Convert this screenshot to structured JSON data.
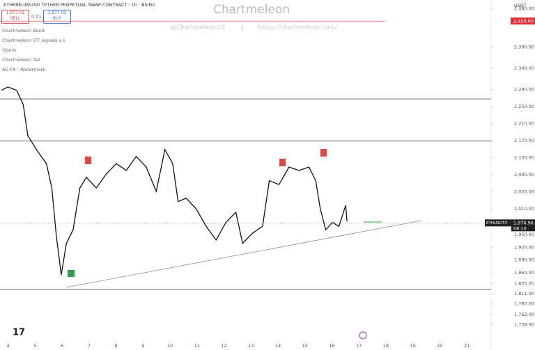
{
  "header": {
    "symbol": "ETHEREUM/USD TETHER PERPETUAL SWAP CONTRACT · 1h · BloFin",
    "sell_price": "1,977.01",
    "sell_label": "SELL",
    "spread": "0.01",
    "buy_price": "1,977.02",
    "buy_label": "BUY"
  },
  "indicators": [
    "Chartmeleon Band",
    "Chartmeleon LTF signals v.1",
    "Opens",
    "Chartmeleon Tall",
    "AG FX - Watermark"
  ],
  "watermark": {
    "title": "Chartmeleon",
    "handle": "@Chartmeleon1B",
    "separator": "|",
    "url": "https://chartmeleon.com/"
  },
  "currency": "USDT",
  "chart": {
    "type": "line",
    "x": [
      3.75,
      3.99,
      4.32,
      4.56,
      4.73,
      5.05,
      5.42,
      5.62,
      5.79,
      5.97,
      6.16,
      6.41,
      6.66,
      6.9,
      7.27,
      7.64,
      8.01,
      8.38,
      8.75,
      9.12,
      9.49,
      9.81,
      10.1,
      10.3,
      10.6,
      10.97,
      11.34,
      11.71,
      12.07,
      12.44,
      12.69,
      13.06,
      13.43,
      13.68,
      14.04,
      14.41,
      14.78,
      15.15,
      15.4,
      15.57,
      15.77,
      16.02,
      16.26,
      16.51,
      16.56
    ],
    "values": [
      2288,
      2296,
      2288,
      2255,
      2182,
      2149,
      2116,
      2059,
      1945,
      1855,
      1929,
      1961,
      2059,
      2084,
      2059,
      2092,
      2116,
      2100,
      2133,
      2108,
      2051,
      2149,
      2116,
      2027,
      2035,
      2010,
      1969,
      1937,
      1978,
      2002,
      1929,
      1953,
      1969,
      2076,
      2067,
      2108,
      2100,
      2108,
      2076,
      2010,
      1961,
      1978,
      1969,
      2018,
      1981
    ],
    "color": "#111111",
    "xlim": [
      3.7,
      21.9
    ],
    "xticks": [
      4,
      5,
      6,
      7,
      8,
      9,
      10,
      11,
      12,
      13,
      14,
      15,
      16,
      17,
      18,
      19,
      20,
      21
    ],
    "ylim": [
      1700,
      2500
    ],
    "yticks": [
      {
        "value": 2480,
        "label": "2,480.00"
      },
      {
        "value": 2390,
        "label": "2,390.00"
      },
      {
        "value": 2340,
        "label": "2,340.00"
      },
      {
        "value": 2290,
        "label": "2,290.00"
      },
      {
        "value": 2250,
        "label": "2,250.00"
      },
      {
        "value": 2210,
        "label": "2,210.00"
      },
      {
        "value": 2170,
        "label": "2,170.00"
      },
      {
        "value": 2130,
        "label": "2,130.00"
      },
      {
        "value": 2090,
        "label": "2,090.00"
      },
      {
        "value": 2050,
        "label": "2,050.00"
      },
      {
        "value": 2010,
        "label": "2,010.00"
      },
      {
        "value": 1950,
        "label": "1,950.00"
      },
      {
        "value": 1920,
        "label": "1,920.00"
      },
      {
        "value": 1890,
        "label": "1,890.00"
      },
      {
        "value": 1860,
        "label": "1,860.00"
      },
      {
        "value": 1835,
        "label": "1,835.00"
      },
      {
        "value": 1811,
        "label": "1,811.00"
      },
      {
        "value": 1787,
        "label": "1,787.00"
      },
      {
        "value": 1762,
        "label": "1,762.00"
      },
      {
        "value": 1738,
        "label": "1,738.00"
      }
    ],
    "levels": [
      2268,
      2169,
      1821
    ],
    "alert": {
      "value": 2450.6,
      "label": "2,450.60"
    },
    "last": {
      "name": "ETHUSDT.P",
      "value": 1976.96,
      "label": "1,976.96",
      "countdown": "08:10"
    }
  }
}
